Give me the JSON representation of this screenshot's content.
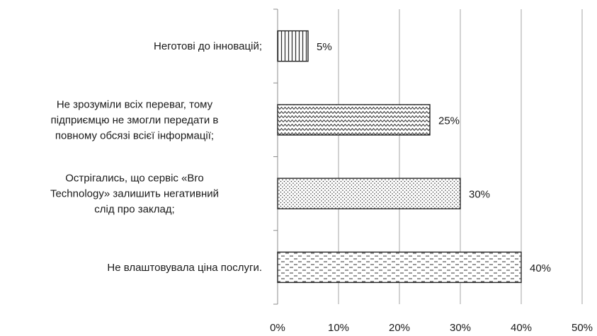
{
  "chart_data": {
    "type": "bar",
    "orientation": "horizontal",
    "categories": [
      [
        "Неготові до інновацій;"
      ],
      [
        "Не зрозуміли всіх переваг, тому",
        "підприємцю не змогли передати в",
        "повному обсязі всієї інформації;"
      ],
      [
        "Острігались, що сервіс «Bro",
        "Technology» залишить негативний",
        "слід про заклад;"
      ],
      [
        "Не влаштовувала ціна послуги."
      ]
    ],
    "values": [
      5,
      25,
      30,
      40
    ],
    "data_labels": [
      "5%",
      "25%",
      "30%",
      "40%"
    ],
    "bar_patterns": [
      "vertical-lines",
      "zigzag",
      "dots",
      "dashes"
    ],
    "xlim": [
      0,
      50
    ],
    "xticks": [
      0,
      10,
      20,
      30,
      40,
      50
    ],
    "xtick_labels": [
      "0%",
      "10%",
      "20%",
      "30%",
      "40%",
      "50%"
    ],
    "grid": true,
    "legend": "none",
    "colors": {
      "bar_stroke": "#262626",
      "pattern": "#333333",
      "grid": "#a6a6a6",
      "text": "#1a1a1a"
    }
  }
}
